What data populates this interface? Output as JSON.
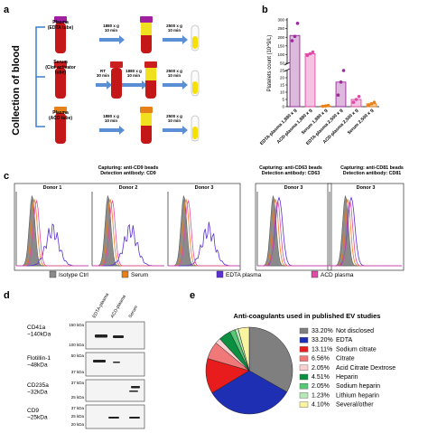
{
  "panel_a": {
    "letter": "a",
    "side_label": "Collection of blood",
    "rows": [
      {
        "tube_label": "Plasma\n(EDTA tube)",
        "cap_color": "#a020a0",
        "steps": [
          "1880 x g\n10 min",
          "2500 x g\n10 min"
        ]
      },
      {
        "tube_label": "Serum\n(Clot activator\ntube)",
        "cap_color": "#cc2020",
        "steps": [
          "RT\n30 min",
          "1880 x g\n10 min",
          "2500 x g\n10 min"
        ]
      },
      {
        "tube_label": "Plasma\n(ACD tube)",
        "cap_color": "#e8801a",
        "steps": [
          "1880 x g\n10 min",
          "2500 x g\n10 min"
        ]
      }
    ]
  },
  "panel_b": {
    "letter": "b",
    "chart_data": {
      "type": "bar",
      "ylabel": "Platelets count (10^9/L)",
      "y_ticks": [
        "0",
        "5",
        "10",
        "15",
        "20",
        "25",
        "50",
        "100",
        "150",
        "200",
        "250",
        "300"
      ],
      "axis_break": true,
      "categories": [
        "EDTA-plasma 1,880 x g",
        "ACD-plasma 1,880 x g",
        "Serum 1,880 x g",
        "EDTA-plasma 2,500 x g",
        "ACD-plasma 2,500 x g",
        "Serum 2,500 x g"
      ],
      "values": [
        210,
        105,
        0.5,
        17,
        5,
        2
      ],
      "points": [
        [
          180,
          205,
          280
        ],
        [
          95,
          105,
          115
        ],
        [
          0.3,
          0.5,
          0.8
        ],
        [
          8,
          17,
          25
        ],
        [
          3,
          5,
          7
        ],
        [
          1,
          2,
          3
        ]
      ],
      "colors": [
        "#9b2c9b",
        "#e24aa8",
        "#e8801a",
        "#9b2c9b",
        "#e24aa8",
        "#e8801a"
      ]
    }
  },
  "panel_c": {
    "letter": "c",
    "groups": [
      {
        "title": "Capturing: anti-CD9 beads\nDetection antibody: CD9",
        "donors": [
          "Donor 1",
          "Donor 2",
          "Donor 3"
        ]
      },
      {
        "title": "Capturing: anti-CD63 beads\nDetection antibody: CD63",
        "donors": [
          "Donor 3"
        ]
      },
      {
        "title": "Capturing: anti-CD81 beads\nDetection antibody: CD81",
        "donors": [
          "Donor 3"
        ]
      }
    ],
    "legend": [
      {
        "label": "Isotype Ctrl",
        "color": "#8a8a8a"
      },
      {
        "label": "Serum",
        "color": "#e8801a"
      },
      {
        "label": "EDTA plasma",
        "color": "#5a2fd6"
      },
      {
        "label": "ACD plasma",
        "color": "#e24aa8"
      }
    ]
  },
  "panel_d": {
    "letter": "d",
    "lanes": [
      "EDTA-plasma",
      "ACD-plasma",
      "Serum"
    ],
    "blots": [
      {
        "protein": "CD41a\n~140kDa",
        "markers": [
          "150 kDa",
          "100 kDa"
        ]
      },
      {
        "protein": "Flotillin-1\n~48kDa",
        "markers": [
          "50 kDa",
          "37 kDa"
        ]
      },
      {
        "protein": "CD235a\n~32kDa",
        "markers": [
          "37 kDa",
          "25 kDa"
        ]
      },
      {
        "protein": "CD9\n~25kDa",
        "markers": [
          "37 kDa",
          "25 kDa",
          "20 kDa"
        ]
      }
    ]
  },
  "panel_e": {
    "letter": "e",
    "chart_data": {
      "type": "pie",
      "title": "Anti-coagulants used in published EV studies",
      "slices": [
        {
          "label": "Not disclosed",
          "percent": "33.20%",
          "value": 33.2,
          "color": "#7f7f7f"
        },
        {
          "label": "EDTA",
          "percent": "33.20%",
          "value": 33.2,
          "color": "#1f2fb4"
        },
        {
          "label": "Sodium citrate",
          "percent": "13.11%",
          "value": 13.11,
          "color": "#e81c1c"
        },
        {
          "label": "Citrate",
          "percent": "6.56%",
          "value": 6.56,
          "color": "#f07878"
        },
        {
          "label": "Acid Citrate Dextrose",
          "percent": "2.05%",
          "value": 2.05,
          "color": "#f8d0d0"
        },
        {
          "label": "Heparin",
          "percent": "4.51%",
          "value": 4.51,
          "color": "#0a9040"
        },
        {
          "label": "Sodium heparin",
          "percent": "2.05%",
          "value": 2.05,
          "color": "#58c878"
        },
        {
          "label": "Lithium heparin",
          "percent": "1.23%",
          "value": 1.23,
          "color": "#b8e8b8"
        },
        {
          "label": "Several/other",
          "percent": "4.10%",
          "value": 4.1,
          "color": "#f8f4a0"
        }
      ]
    }
  }
}
